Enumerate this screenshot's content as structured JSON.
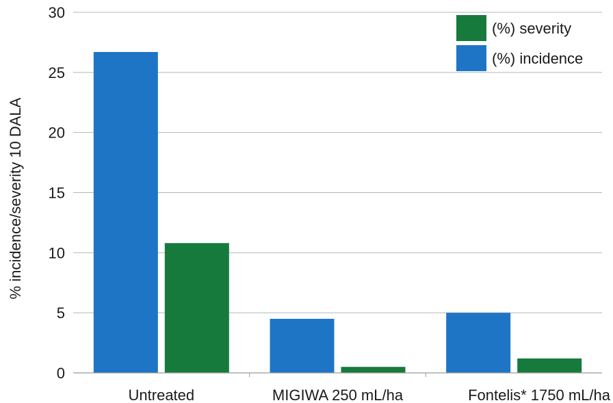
{
  "chart_data": {
    "type": "bar",
    "categories": [
      "Untreated",
      "MIGIWA 250 mL/ha",
      "Fontelis* 1750 mL/ha"
    ],
    "series": [
      {
        "name": "(%) incidence",
        "values": [
          26.7,
          4.5,
          5.0
        ],
        "color": "#1f75c5"
      },
      {
        "name": "(%) severity",
        "values": [
          10.8,
          0.5,
          1.2
        ],
        "color": "#167a3c"
      }
    ],
    "ylabel": "% incidence/severity 10 DALA",
    "xlabel": "",
    "ylim": [
      0,
      30
    ],
    "yticks": [
      0,
      5,
      10,
      15,
      20,
      25,
      30
    ],
    "grid": true,
    "legend": {
      "position": "top-right",
      "entries": [
        "(%) severity",
        "(%) incidence"
      ]
    }
  }
}
